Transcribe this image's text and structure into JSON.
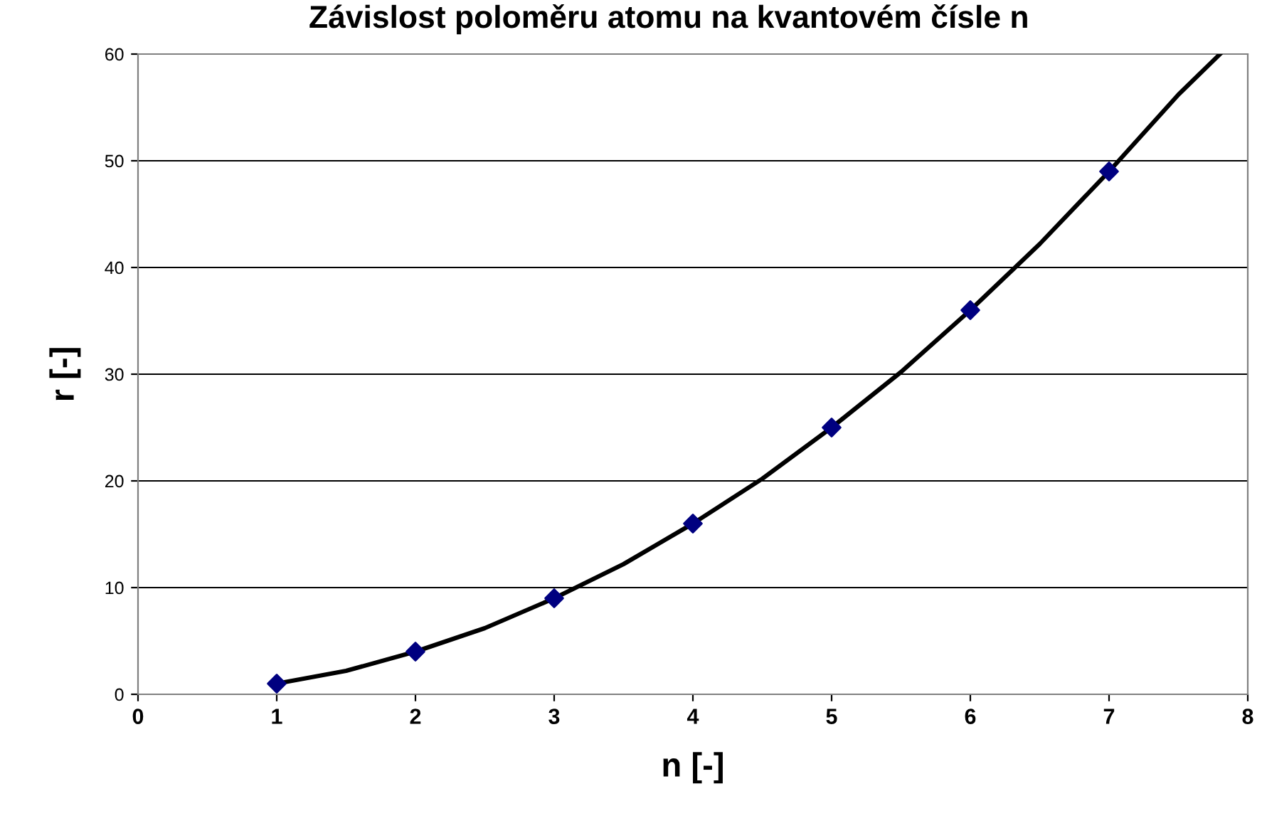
{
  "chart_data": {
    "type": "scatter",
    "title": "Závislost poloměru atomu na kvantovém čísle n",
    "xlabel": "n [-]",
    "ylabel": "r [-]",
    "series": [
      {
        "type": "line",
        "color": "#000000",
        "marker": "none",
        "x": [
          1,
          1.5,
          2,
          2.5,
          3,
          3.5,
          4,
          4.5,
          5,
          5.5,
          6,
          6.5,
          7,
          7.5,
          7.8
        ],
        "values": [
          1,
          2.2,
          4,
          6.2,
          9,
          12.2,
          16,
          20.2,
          25,
          30.2,
          36,
          42.2,
          49,
          56.2,
          60
        ]
      },
      {
        "color": "#000080",
        "marker": "diamond",
        "x": [
          1,
          2,
          3,
          4,
          5,
          6,
          7
        ],
        "values": [
          1,
          4,
          9,
          16,
          25,
          36,
          49
        ]
      }
    ],
    "xlim": [
      0,
      8
    ],
    "xticks": [
      0,
      1,
      2,
      3,
      4,
      5,
      6,
      7,
      8
    ],
    "ylim": [
      0,
      60
    ],
    "yticks": [
      0,
      10,
      20,
      30,
      40,
      50,
      60
    ],
    "grid": "y",
    "legend": false
  }
}
